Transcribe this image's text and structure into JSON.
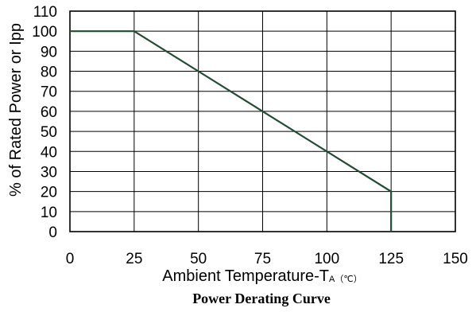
{
  "chart_data": {
    "type": "line",
    "title": "Power Derating Curve",
    "xlabel": "Ambient Temperature-T",
    "xlabel_subscript": "A",
    "xlabel_unit": "（℃）",
    "ylabel": "% of Rated Power or Ipp",
    "xlim": [
      0,
      150
    ],
    "ylim": [
      0,
      110
    ],
    "x_ticks": [
      0,
      25,
      50,
      75,
      100,
      125,
      150
    ],
    "y_ticks": [
      0,
      10,
      20,
      30,
      40,
      50,
      60,
      70,
      80,
      90,
      100,
      110
    ],
    "grid": true,
    "series": [
      {
        "x": [
          0,
          25,
          125,
          125
        ],
        "y": [
          100,
          100,
          20,
          0
        ],
        "color": "#1f4d33"
      }
    ]
  },
  "colors": {
    "grid": "#000000",
    "frame": "#000000",
    "curve": "#1f4d33"
  }
}
